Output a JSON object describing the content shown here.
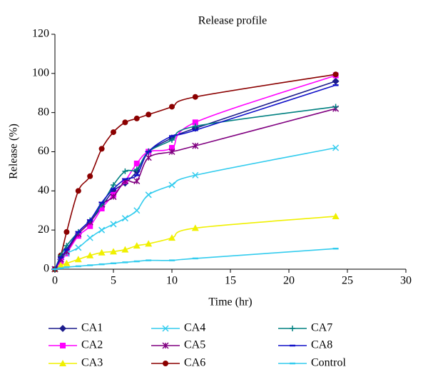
{
  "chart_data": {
    "type": "line",
    "title": "Release profile",
    "x_label": "Time (hr)",
    "y_label": "Release (%)",
    "xlim": [
      0,
      30
    ],
    "xticks": [
      0,
      5,
      10,
      15,
      20,
      25,
      30
    ],
    "ylim": [
      0,
      120
    ],
    "yticks": [
      0,
      20,
      40,
      60,
      80,
      100,
      120
    ],
    "series": [
      {
        "name": "CA1",
        "color": "#1c1c8c",
        "marker": "diamond",
        "x": [
          0,
          0.5,
          1,
          2,
          3,
          4,
          5,
          6,
          7,
          8,
          10,
          12,
          24
        ],
        "values": [
          0,
          5,
          10,
          18,
          24,
          32,
          40,
          44,
          50,
          60,
          67,
          72,
          96
        ]
      },
      {
        "name": "CA2",
        "color": "#ff00ff",
        "marker": "square",
        "x": [
          0,
          0.5,
          1,
          2,
          3,
          4,
          5,
          6,
          7,
          8,
          10,
          12,
          24
        ],
        "values": [
          0,
          4,
          8,
          17,
          22,
          31,
          38,
          45,
          54,
          60,
          62,
          75,
          99
        ]
      },
      {
        "name": "CA3",
        "color": "#f0f000",
        "marker": "triangle",
        "x": [
          0,
          0.5,
          1,
          2,
          3,
          4,
          5,
          6,
          7,
          8,
          10,
          12,
          24
        ],
        "values": [
          0,
          2,
          3,
          5,
          7,
          8.5,
          9,
          10,
          12,
          13,
          16,
          21,
          27
        ]
      },
      {
        "name": "CA4",
        "color": "#33ccee",
        "marker": "x",
        "x": [
          0,
          0.5,
          1,
          2,
          3,
          4,
          5,
          6,
          7,
          8,
          10,
          12,
          24
        ],
        "values": [
          0,
          5,
          8,
          11,
          16,
          20,
          23,
          26,
          30,
          38,
          43,
          48,
          62
        ]
      },
      {
        "name": "CA5",
        "color": "#800080",
        "marker": "asterisk",
        "x": [
          0,
          0.5,
          1,
          2,
          3,
          4,
          5,
          6,
          7,
          8,
          10,
          12,
          24
        ],
        "values": [
          0,
          5,
          9,
          18,
          24,
          33,
          37,
          45,
          45,
          57,
          60,
          63,
          82
        ]
      },
      {
        "name": "CA6",
        "color": "#8b0000",
        "marker": "circle",
        "x": [
          0,
          0.5,
          1,
          2,
          3,
          4,
          5,
          6,
          7,
          8,
          10,
          12,
          24
        ],
        "values": [
          0,
          7,
          19,
          40,
          47.5,
          61.5,
          70,
          75,
          77,
          79,
          83,
          88,
          99.5
        ]
      },
      {
        "name": "CA7",
        "color": "#008080",
        "marker": "plus",
        "x": [
          0,
          0.5,
          1,
          2,
          3,
          4,
          5,
          6,
          7,
          8,
          10,
          12,
          24
        ],
        "values": [
          0,
          7,
          12,
          19,
          25,
          33,
          43,
          50,
          51,
          60,
          66,
          73,
          83
        ]
      },
      {
        "name": "CA8",
        "color": "#1010c8",
        "marker": "dash",
        "x": [
          0,
          0.5,
          1,
          2,
          3,
          4,
          5,
          6,
          7,
          8,
          10,
          12,
          24
        ],
        "values": [
          0,
          6,
          10,
          19,
          25,
          34,
          41,
          46,
          48,
          60,
          68,
          71,
          94
        ]
      },
      {
        "name": "Control",
        "color": "#33ccee",
        "marker": "dash",
        "x": [
          0,
          0.5,
          1,
          2,
          3,
          4,
          5,
          6,
          7,
          8,
          10,
          12,
          24
        ],
        "values": [
          0,
          0.5,
          1,
          1.5,
          2,
          2.5,
          3,
          3.5,
          4,
          4.5,
          4.5,
          5.5,
          10.5
        ]
      }
    ]
  }
}
